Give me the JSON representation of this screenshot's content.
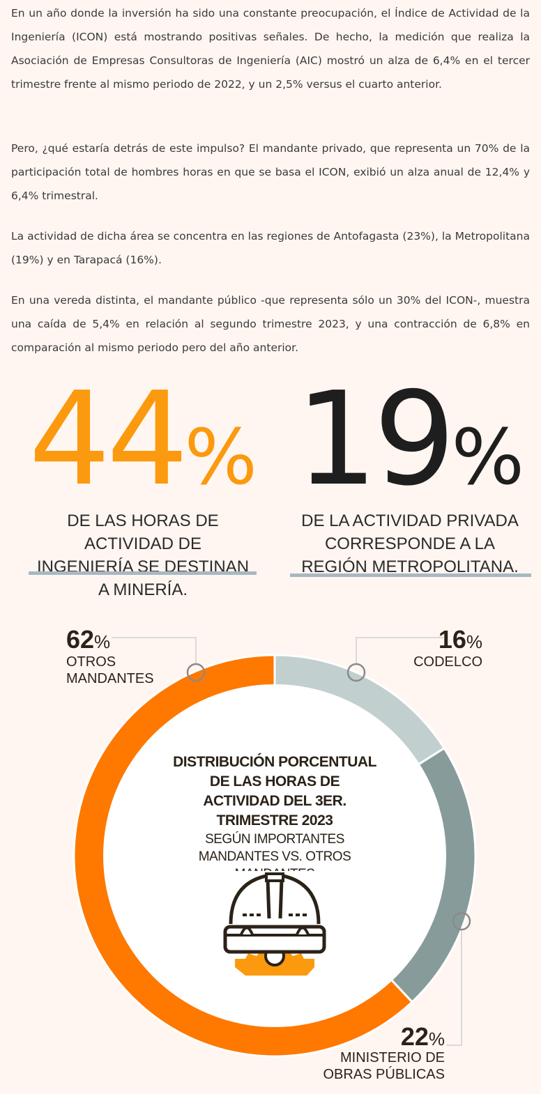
{
  "article": {
    "paragraphs": [
      "En un año donde la inversión ha sido una constante preocupación, el Índice de Actividad de la Ingeniería (ICON) está mostrando positivas señales. De hecho, la medición que realiza la Asociación de Empresas Consultoras de Ingeniería (AIC) mostró un alza de 6,4% en el tercer trimestre frente al mismo periodo de 2022, y un 2,5% versus el cuarto anterior.",
      "Pero, ¿qué estaría detrás de este impulso? El mandante privado, que representa un 70% de la participación total de hombres horas en que se basa el ICON, exibió un alza anual de 12,4% y 6,4% trimestral.",
      "La actividad de dicha área se concentra en las regiones de Antofagasta (23%), la Metropolitana (19%) y en Tarapacá (16%).",
      "En una vereda distinta, el mandante público -que representa sólo un 30% del ICON-, muestra una caída de 5,4% en relación al segundo trimestre 2023, y una contracción de 6,8% en comparación al mismo periodo pero del año anterior."
    ]
  },
  "stats": [
    {
      "number": "44",
      "percent": "%",
      "caption": "DE LAS HORAS DE ACTIVIDAD DE INGENIERÍA SE DESTINAN A MINERÍA.",
      "color": "#fb9a0e"
    },
    {
      "number": "19",
      "percent": "%",
      "caption": "DE LA ACTIVIDAD PRIVADA CORRESPONDE A LA REGIÓN METROPOLITANA.",
      "color": "#1e1e1e"
    }
  ],
  "chart_data": {
    "type": "pie",
    "variant": "donut",
    "title": "DISTRIBUCIÓN PORCENTUAL DE LAS HORAS DE ACTIVIDAD DEL 3ER. TRIMESTRE 2023",
    "subtitle": "SEGÚN IMPORTANTES MANDANTES VS. OTROS MANDANTES",
    "center_icon": "hard-hat-gear-icon",
    "slices": [
      {
        "label_lines": [
          "CODELCO"
        ],
        "value": 16,
        "display": "16",
        "color": "#c1cfcf"
      },
      {
        "label_lines": [
          "MINISTERIO DE",
          "OBRAS PÚBLICAS"
        ],
        "value": 22,
        "display": "22",
        "color": "#879b9b"
      },
      {
        "label_lines": [
          "OTROS",
          "MANDANTES"
        ],
        "value": 62,
        "display": "62",
        "color": "#ff7800"
      }
    ],
    "percent_sign": "%",
    "start": "top",
    "direction": "clockwise"
  }
}
